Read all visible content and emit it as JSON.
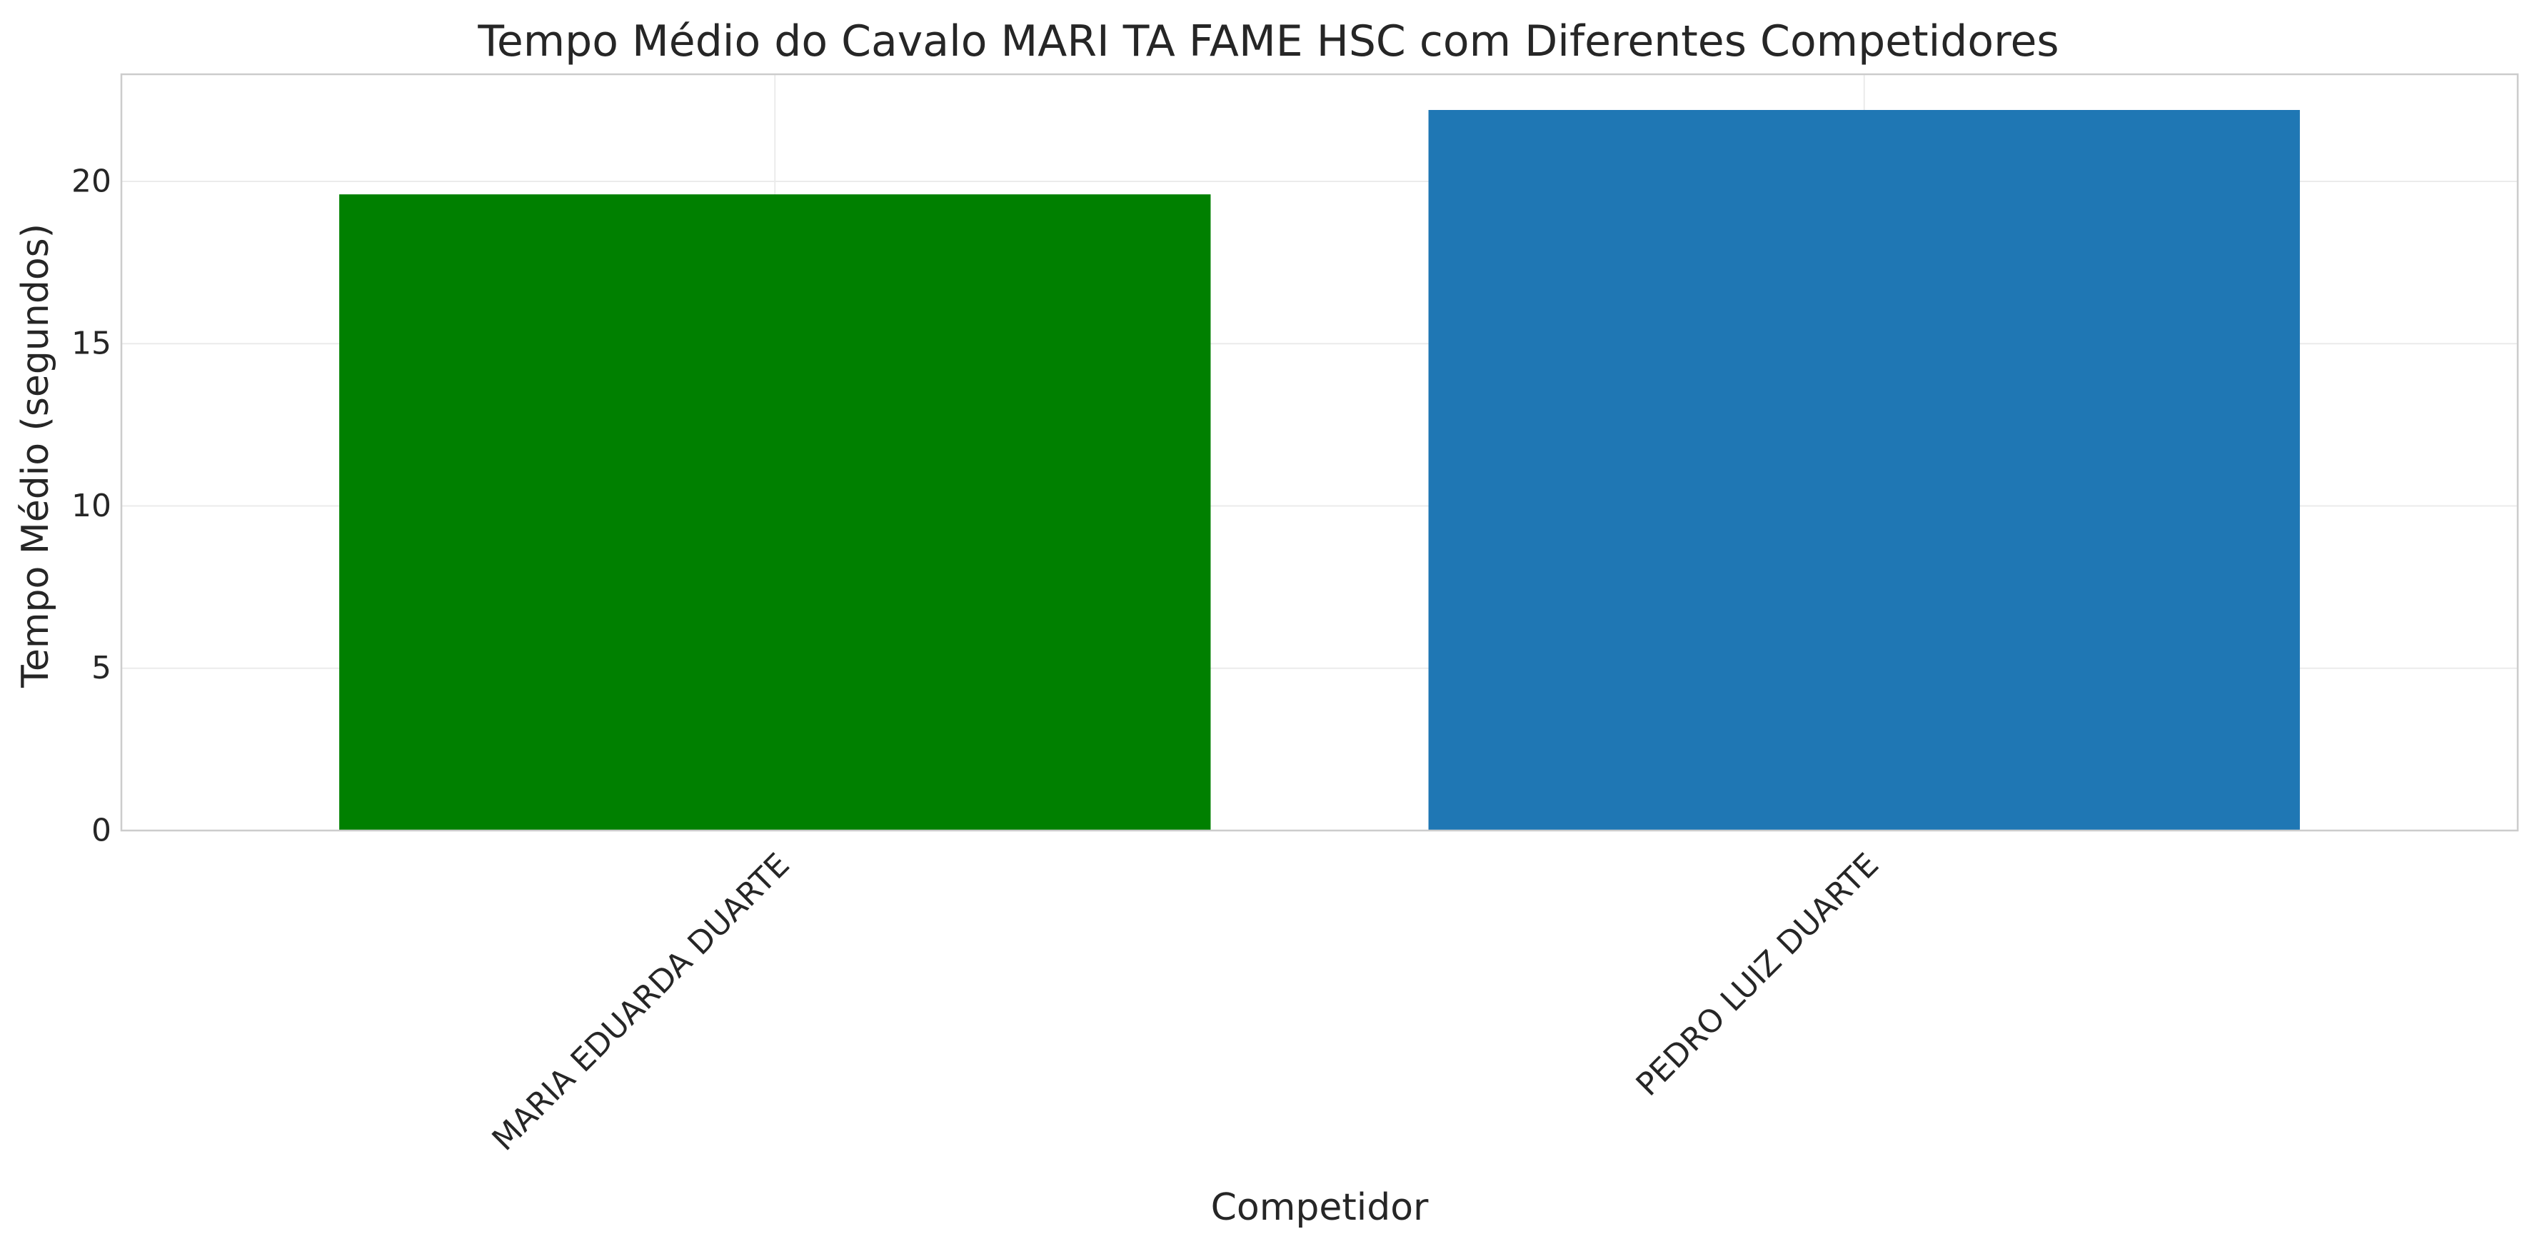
{
  "chart_data": {
    "type": "bar",
    "title": "Tempo Médio do Cavalo MARI TA FAME HSC com Diferentes Competidores",
    "xlabel": "Competidor",
    "ylabel": "Tempo Médio (segundos)",
    "categories": [
      "MARIA EDUARDA DUARTE",
      "PEDRO LUIZ DUARTE"
    ],
    "values": [
      19.6,
      22.2
    ],
    "colors": [
      "#008000",
      "#1f77b4"
    ],
    "ylim": [
      0,
      23.3
    ],
    "yticks": [
      0,
      5,
      10,
      15,
      20
    ],
    "ytick_labels": [
      "0",
      "5",
      "10",
      "15",
      "20"
    ],
    "grid": true,
    "legend": "none"
  }
}
